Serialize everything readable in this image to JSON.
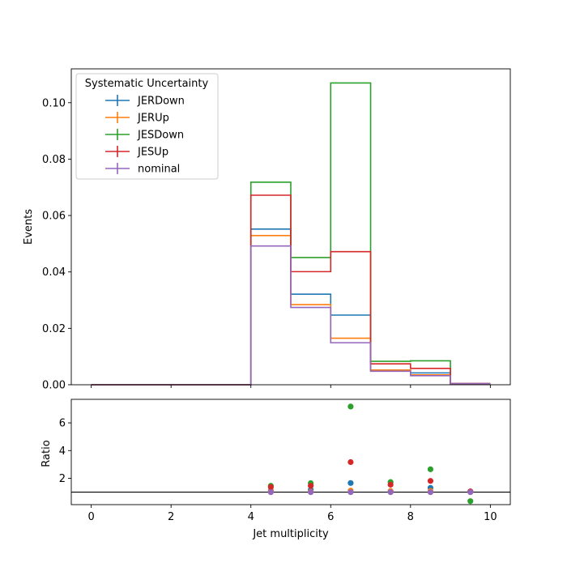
{
  "chart_data": [
    {
      "type": "histogram-step",
      "ylabel": "Events",
      "xlim": [
        -0.5,
        10.5
      ],
      "ylim": [
        0,
        0.112
      ],
      "yticks": [
        0.0,
        0.02,
        0.04,
        0.06,
        0.08,
        0.1
      ],
      "ytick_labels": [
        "0.00",
        "0.02",
        "0.04",
        "0.06",
        "0.08",
        "0.10"
      ],
      "bin_edges": [
        0,
        1,
        2,
        3,
        4,
        5,
        6,
        7,
        8,
        9,
        10
      ],
      "legend": {
        "title": "Systematic Uncertainty",
        "placement": "upper-left"
      },
      "series": [
        {
          "name": "JERDown",
          "color": "#1f77b4",
          "values": [
            0,
            0,
            0,
            0,
            0.0552,
            0.0321,
            0.0247,
            0.0052,
            0.0042,
            0.0004
          ]
        },
        {
          "name": "JERUp",
          "color": "#ff7f0e",
          "values": [
            0,
            0,
            0,
            0,
            0.0529,
            0.0284,
            0.0165,
            0.0052,
            0.0035,
            0.0004
          ]
        },
        {
          "name": "JESDown",
          "color": "#2ca02c",
          "values": [
            0,
            0,
            0,
            0,
            0.0718,
            0.0451,
            0.107,
            0.0083,
            0.0085,
            0.0002
          ]
        },
        {
          "name": "JESUp",
          "color": "#d62728",
          "values": [
            0,
            0,
            0,
            0,
            0.0672,
            0.0401,
            0.0472,
            0.0074,
            0.0058,
            0.0004
          ]
        },
        {
          "name": "nominal",
          "color": "#9467bd",
          "values": [
            0,
            0,
            0,
            0,
            0.0492,
            0.0274,
            0.0149,
            0.0048,
            0.0032,
            0.0004
          ]
        }
      ]
    },
    {
      "type": "scatter",
      "xlabel": "Jet multiplicity",
      "ylabel": "Ratio",
      "xlim": [
        -0.5,
        10.5
      ],
      "ylim": [
        0.1,
        7.7
      ],
      "xticks": [
        0,
        2,
        4,
        6,
        8,
        10
      ],
      "xtick_labels": [
        "0",
        "2",
        "4",
        "6",
        "8",
        "10"
      ],
      "yticks": [
        2,
        4,
        6
      ],
      "ytick_labels": [
        "2",
        "4",
        "6"
      ],
      "reference_line": 1.0,
      "x": [
        4.5,
        5.5,
        6.5,
        7.5,
        8.5,
        9.5
      ],
      "series": [
        {
          "name": "JERDown",
          "color": "#1f77b4",
          "values": [
            1.12,
            1.17,
            1.66,
            1.08,
            1.31,
            1.05
          ]
        },
        {
          "name": "JERUp",
          "color": "#ff7f0e",
          "values": [
            1.08,
            1.04,
            1.11,
            1.08,
            1.09,
            1.05
          ]
        },
        {
          "name": "JESDown",
          "color": "#2ca02c",
          "values": [
            1.46,
            1.65,
            7.18,
            1.73,
            2.65,
            0.35
          ]
        },
        {
          "name": "JESUp",
          "color": "#d62728",
          "values": [
            1.37,
            1.46,
            3.17,
            1.54,
            1.81,
            1.05
          ]
        },
        {
          "name": "nominal",
          "color": "#9467bd",
          "values": [
            1.0,
            1.0,
            1.0,
            1.0,
            1.0,
            1.0
          ]
        }
      ]
    }
  ]
}
